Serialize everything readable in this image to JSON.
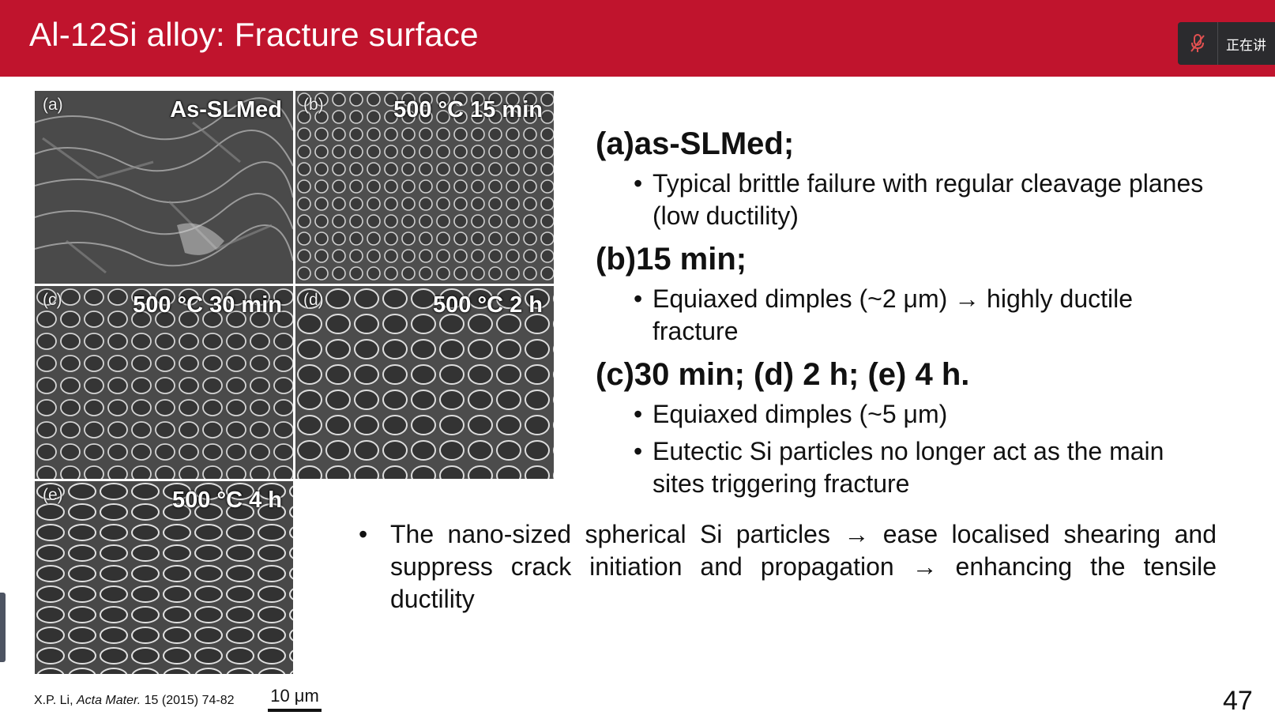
{
  "header": {
    "title": "Al-12Si alloy: Fracture surface",
    "accent_color": "#c0142d"
  },
  "meeting_bar": {
    "mic_icon": "mic-muted-icon",
    "status_text": "正在讲"
  },
  "figure": {
    "panels": [
      {
        "label": "(a)",
        "title": "As-SLMed"
      },
      {
        "label": "(b)",
        "title": "500 °C 15 min"
      },
      {
        "label": "(c)",
        "title": "500 °C 30 min"
      },
      {
        "label": "(d)",
        "title": "500 °C 2 h"
      },
      {
        "label": "(e)",
        "title": "500 °C 4 h"
      }
    ],
    "scale_bar": "10 μm",
    "citation": {
      "author": "X.P. Li, ",
      "journal": "Acta Mater.",
      "ref": " 15 (2015) 74-82"
    }
  },
  "content": {
    "groups": [
      {
        "heading": "(a)as-SLMed;",
        "bullets": [
          "Typical brittle failure with regular cleavage planes (low ductility)"
        ]
      },
      {
        "heading": "(b)15 min;",
        "bullets": [
          "Equiaxed dimples (~2 μm) → highly ductile fracture"
        ]
      },
      {
        "heading": "(c)30 min; (d) 2 h; (e) 4 h.",
        "bullets": [
          "Equiaxed dimples (~5 μm)",
          "Eutectic Si particles no longer act as the main sites triggering fracture"
        ]
      }
    ],
    "bottom_bullet": "The nano-sized spherical Si particles → ease localised shearing and suppress crack initiation and propagation → enhancing the tensile ductility"
  },
  "page_number": "47",
  "bullet_char": "•"
}
